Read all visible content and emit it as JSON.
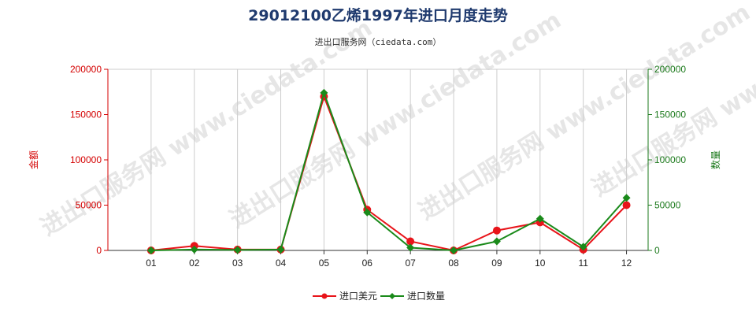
{
  "chart_data": {
    "type": "line",
    "title": "29012100乙烯1997年进口月度走势",
    "subtitle": "进出口服务网（ciedata.com）",
    "watermark": "进出口服务网 www.ciedata.com",
    "categories": [
      "01",
      "02",
      "03",
      "04",
      "05",
      "06",
      "07",
      "08",
      "09",
      "10",
      "11",
      "12"
    ],
    "ylabel_left": "金额",
    "ylabel_right": "数量",
    "ylim_left": [
      0,
      200000
    ],
    "ylim_right": [
      0,
      200000
    ],
    "yticks_left": [
      "0",
      "50000",
      "100000",
      "150000",
      "200000"
    ],
    "yticks_right": [
      "0",
      "50000",
      "100000",
      "150000",
      "200000"
    ],
    "grid": "vertical",
    "legend_position": "bottom",
    "series": [
      {
        "name": "进口美元",
        "axis": "left",
        "color": "#e8141a",
        "values": [
          0,
          5000,
          1000,
          1000,
          170000,
          45000,
          10000,
          0,
          22000,
          31000,
          1000,
          50000
        ]
      },
      {
        "name": "进口数量",
        "axis": "right",
        "color": "#1a8a1a",
        "values": [
          0,
          1000,
          500,
          1000,
          174000,
          42000,
          3000,
          0,
          10000,
          35000,
          4000,
          58000
        ]
      }
    ]
  }
}
